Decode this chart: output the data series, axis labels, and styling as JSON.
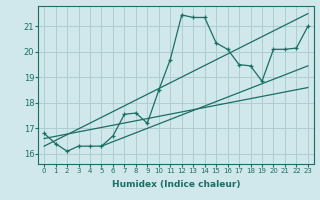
{
  "xlabel": "Humidex (Indice chaleur)",
  "ylabel": "",
  "bg_color": "#d0e8ec",
  "line_color": "#1a6e64",
  "grid_color": "#aecdd2",
  "xlim": [
    -0.5,
    23.5
  ],
  "ylim": [
    15.6,
    21.8
  ],
  "xticks": [
    0,
    1,
    2,
    3,
    4,
    5,
    6,
    7,
    8,
    9,
    10,
    11,
    12,
    13,
    14,
    15,
    16,
    17,
    18,
    19,
    20,
    21,
    22,
    23
  ],
  "yticks": [
    16,
    17,
    18,
    19,
    20,
    21
  ],
  "main_x": [
    0,
    1,
    2,
    3,
    4,
    5,
    6,
    7,
    8,
    9,
    10,
    11,
    12,
    13,
    14,
    15,
    16,
    17,
    18,
    19,
    20,
    21,
    22,
    23
  ],
  "main_y": [
    16.8,
    16.4,
    16.1,
    16.3,
    16.3,
    16.3,
    16.7,
    17.55,
    17.6,
    17.2,
    18.5,
    19.7,
    21.45,
    21.35,
    21.35,
    20.35,
    20.1,
    19.5,
    19.45,
    18.85,
    20.1,
    20.1,
    20.15,
    21.0
  ],
  "line1_x": [
    0,
    23
  ],
  "line1_y": [
    16.6,
    18.6
  ],
  "line2_x": [
    0,
    23
  ],
  "line2_y": [
    16.3,
    21.5
  ],
  "line3_x": [
    5,
    23
  ],
  "line3_y": [
    16.3,
    19.45
  ]
}
